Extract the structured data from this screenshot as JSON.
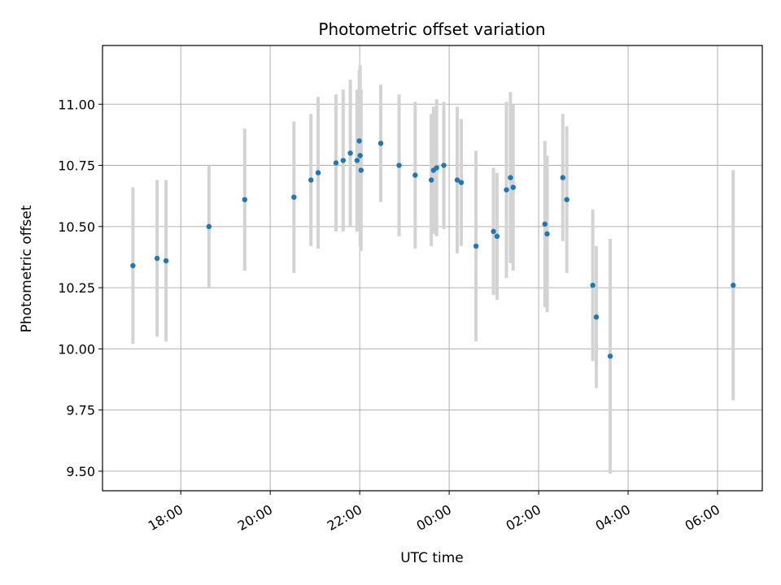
{
  "chart_data": {
    "type": "scatter",
    "title": "Photometric offset variation",
    "xlabel": "UTC time",
    "ylabel": "Photometric offset",
    "x_unit": "hours relative to 00:00 UTC",
    "xlim": [
      -7.75,
      7.0
    ],
    "ylim": [
      9.42,
      11.24
    ],
    "xticks": [
      {
        "value": -6,
        "label": "18:00"
      },
      {
        "value": -4,
        "label": "20:00"
      },
      {
        "value": -2,
        "label": "22:00"
      },
      {
        "value": 0,
        "label": "00:00"
      },
      {
        "value": 2,
        "label": "02:00"
      },
      {
        "value": 4,
        "label": "04:00"
      },
      {
        "value": 6,
        "label": "06:00"
      }
    ],
    "yticks": [
      {
        "value": 9.5,
        "label": "9.50"
      },
      {
        "value": 9.75,
        "label": "9.75"
      },
      {
        "value": 10.0,
        "label": "10.00"
      },
      {
        "value": 10.25,
        "label": "10.25"
      },
      {
        "value": 10.5,
        "label": "10.50"
      },
      {
        "value": 10.75,
        "label": "10.75"
      },
      {
        "value": 11.0,
        "label": "11.00"
      }
    ],
    "grid": true,
    "point_color": "#1f77b4",
    "errorbar_color": "#d3d3d3",
    "points": [
      {
        "x": -7.07,
        "y": 10.34,
        "err": 0.32
      },
      {
        "x": -6.53,
        "y": 10.37,
        "err": 0.32
      },
      {
        "x": -6.33,
        "y": 10.36,
        "err": 0.33
      },
      {
        "x": -5.37,
        "y": 10.5,
        "err": 0.25
      },
      {
        "x": -4.57,
        "y": 10.61,
        "err": 0.29
      },
      {
        "x": -3.47,
        "y": 10.62,
        "err": 0.31
      },
      {
        "x": -3.09,
        "y": 10.69,
        "err": 0.27
      },
      {
        "x": -2.93,
        "y": 10.72,
        "err": 0.31
      },
      {
        "x": -2.53,
        "y": 10.76,
        "err": 0.28
      },
      {
        "x": -2.37,
        "y": 10.77,
        "err": 0.29
      },
      {
        "x": -2.21,
        "y": 10.8,
        "err": 0.3
      },
      {
        "x": -2.06,
        "y": 10.77,
        "err": 0.29
      },
      {
        "x": -2.01,
        "y": 10.85,
        "err": 0.29
      },
      {
        "x": -1.99,
        "y": 10.79,
        "err": 0.37
      },
      {
        "x": -1.97,
        "y": 10.73,
        "err": 0.33
      },
      {
        "x": -1.53,
        "y": 10.84,
        "err": 0.24
      },
      {
        "x": -1.12,
        "y": 10.75,
        "err": 0.29
      },
      {
        "x": -0.76,
        "y": 10.71,
        "err": 0.3
      },
      {
        "x": -0.4,
        "y": 10.69,
        "err": 0.27
      },
      {
        "x": -0.35,
        "y": 10.73,
        "err": 0.26
      },
      {
        "x": -0.28,
        "y": 10.74,
        "err": 0.28
      },
      {
        "x": -0.12,
        "y": 10.75,
        "err": 0.26
      },
      {
        "x": 0.18,
        "y": 10.69,
        "err": 0.3
      },
      {
        "x": 0.27,
        "y": 10.68,
        "err": 0.26
      },
      {
        "x": 0.6,
        "y": 10.42,
        "err": 0.39
      },
      {
        "x": 0.99,
        "y": 10.48,
        "err": 0.26
      },
      {
        "x": 1.07,
        "y": 10.46,
        "err": 0.26
      },
      {
        "x": 1.28,
        "y": 10.65,
        "err": 0.36
      },
      {
        "x": 1.37,
        "y": 10.7,
        "err": 0.35
      },
      {
        "x": 1.43,
        "y": 10.66,
        "err": 0.34
      },
      {
        "x": 2.14,
        "y": 10.51,
        "err": 0.34
      },
      {
        "x": 2.19,
        "y": 10.47,
        "err": 0.32
      },
      {
        "x": 2.54,
        "y": 10.7,
        "err": 0.26
      },
      {
        "x": 2.63,
        "y": 10.61,
        "err": 0.3
      },
      {
        "x": 3.21,
        "y": 10.26,
        "err": 0.31
      },
      {
        "x": 3.29,
        "y": 10.13,
        "err": 0.29
      },
      {
        "x": 3.6,
        "y": 9.97,
        "err": 0.48
      },
      {
        "x": 6.35,
        "y": 10.26,
        "err": 0.47
      }
    ]
  }
}
